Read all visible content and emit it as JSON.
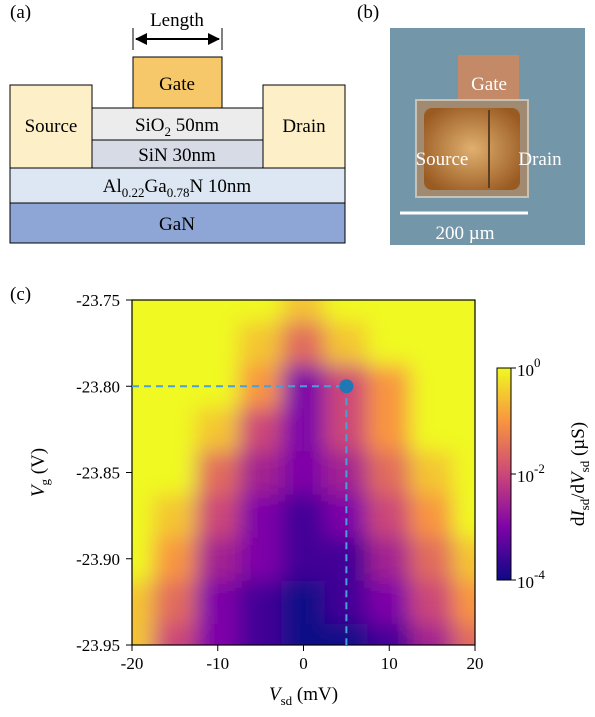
{
  "panel_a": {
    "label": "(a)",
    "length": "Length",
    "gate": "Gate",
    "source": "Source",
    "drain": "Drain",
    "sio2": {
      "text": "SiO",
      "sub": "2",
      "rest": " 50nm"
    },
    "sin": "SiN 30nm",
    "algan": [
      "Al",
      "0.22",
      "Ga",
      "0.78",
      "N 10nm"
    ],
    "gan": "GaN"
  },
  "panel_b": {
    "label": "(b)",
    "gate": "Gate",
    "source": "Source",
    "drain": "Drain",
    "scale_bar": "200 µm"
  },
  "chart_data": {
    "type": "heatmap",
    "label": "(c)",
    "x": [
      -20,
      -15,
      -10,
      -5,
      0,
      5,
      10,
      15,
      20
    ],
    "y": [
      -23.95,
      -23.925,
      -23.9,
      -23.875,
      -23.85,
      -23.825,
      -23.8,
      -23.775,
      -23.75
    ],
    "z": [
      [
        0.3,
        0.01,
        0.001,
        0.0003,
        0.0001,
        0.0001,
        0.0003,
        0.003,
        0.03
      ],
      [
        0.3,
        0.03,
        0.001,
        0.0003,
        0.0001,
        0.0003,
        0.001,
        0.01,
        0.1
      ],
      [
        1,
        0.1,
        0.003,
        0.001,
        0.0003,
        0.0003,
        0.003,
        0.03,
        0.3
      ],
      [
        1,
        0.3,
        0.01,
        0.001,
        0.0003,
        0.001,
        0.01,
        0.1,
        1
      ],
      [
        1,
        1,
        0.03,
        0.003,
        0.001,
        0.003,
        0.03,
        0.3,
        1
      ],
      [
        1,
        1,
        0.3,
        0.01,
        0.001,
        0.01,
        0.1,
        1,
        1
      ],
      [
        1,
        1,
        1,
        0.1,
        0.001,
        0.01,
        0.1,
        1,
        1
      ],
      [
        1,
        1,
        1,
        0.3,
        0.03,
        0.3,
        1,
        1,
        1
      ],
      [
        1,
        1,
        1,
        1,
        0.3,
        1,
        1,
        1,
        1
      ]
    ],
    "xlim": [
      -20,
      20
    ],
    "xticks": [
      -20,
      -10,
      0,
      10,
      20
    ],
    "ylim": [
      -23.95,
      -23.75
    ],
    "yticks": [
      -23.95,
      {
        "value": -23.9,
        "label": "-23.90"
      },
      -23.85,
      {
        "value": -23.8,
        "label": "-23.80"
      },
      -23.75
    ],
    "x_label": {
      "symbol": "V",
      "sub": "sd",
      "unit": " (mV)"
    },
    "y_label": {
      "symbol": "V",
      "sub": "g",
      "unit": " (V)"
    },
    "colorbar": {
      "scale": "log",
      "colormap": "plasma",
      "lim": [
        0.0001,
        1
      ],
      "ticks": [
        {
          "value": 1,
          "label": "10",
          "exponent": "0"
        },
        {
          "value": 0.01,
          "label": "10",
          "exponent": "-2"
        },
        {
          "value": 0.0001,
          "label": "10",
          "exponent": "-4"
        }
      ],
      "label": [
        "d",
        "I",
        "sd",
        "/d",
        "V",
        "sd",
        " (µS)"
      ]
    },
    "marker": {
      "x": 5,
      "y": -23.8,
      "color": "#1f78b4",
      "line_color": "#4a9fd8"
    }
  }
}
